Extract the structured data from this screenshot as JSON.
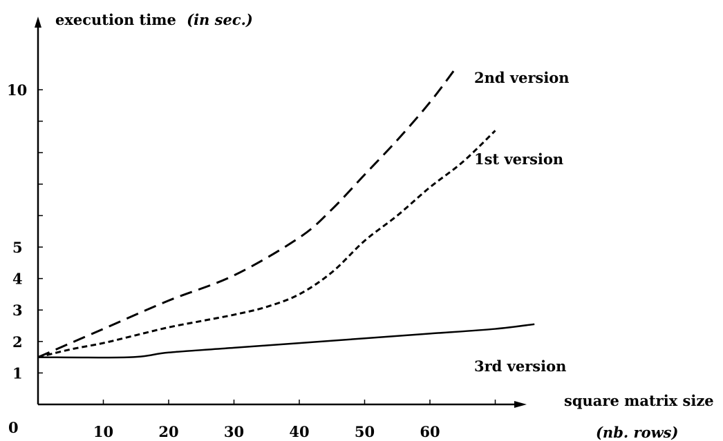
{
  "chart_data": {
    "type": "line",
    "title": "",
    "ylabel": "execution time",
    "ylabel_unit": "(in sec.)",
    "xlabel": "square matrix size",
    "xlabel_unit": "(nb. rows)",
    "origin_label": "0",
    "x_ticks": [
      10,
      20,
      30,
      40,
      50,
      60
    ],
    "y_ticks": [
      1,
      2,
      3,
      4,
      5,
      10
    ],
    "xlim": [
      0,
      76
    ],
    "ylim": [
      0,
      12
    ],
    "grid": false,
    "legend": "inline labels",
    "series": [
      {
        "name": "2nd version",
        "style": "long-dash",
        "x": [
          0,
          10,
          20,
          30,
          40,
          45,
          50,
          55,
          60,
          64
        ],
        "y": [
          1.5,
          2.4,
          3.3,
          4.1,
          5.3,
          6.2,
          7.3,
          8.4,
          9.6,
          10.7
        ]
      },
      {
        "name": "1st version",
        "style": "short-dash",
        "x": [
          0,
          5,
          10,
          15,
          20,
          25,
          30,
          35,
          40,
          45,
          50,
          55,
          60,
          65,
          70
        ],
        "y": [
          1.5,
          1.75,
          1.95,
          2.2,
          2.45,
          2.65,
          2.85,
          3.1,
          3.5,
          4.2,
          5.2,
          6.0,
          6.9,
          7.7,
          8.7
        ]
      },
      {
        "name": "3rd version",
        "style": "solid",
        "x": [
          0,
          14,
          20,
          30,
          40,
          50,
          60,
          70,
          76
        ],
        "y": [
          1.5,
          1.5,
          1.65,
          1.8,
          1.95,
          2.1,
          2.25,
          2.4,
          2.55
        ]
      }
    ]
  }
}
